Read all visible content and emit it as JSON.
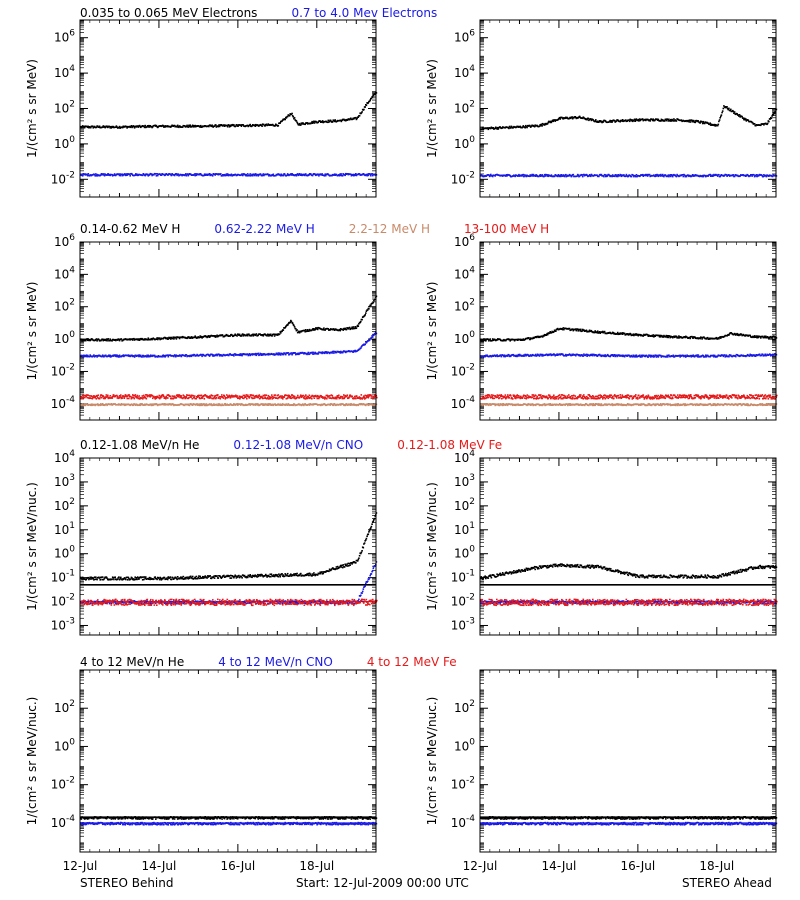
{
  "colors": {
    "black": "#000000",
    "blue": "#1a1ae6",
    "red": "#e61a1a",
    "tan": "#c98a6a"
  },
  "rows": [
    {
      "legend": [
        {
          "text": "0.035 to 0.065 MeV Electrons",
          "color": "black"
        },
        {
          "text": "0.7 to 4.0 Mev Electrons",
          "color": "blue"
        }
      ],
      "ylabel": "1/(cm² s sr MeV)",
      "ytick_labels": [
        {
          "base": "10",
          "exp": "6",
          "v": 6
        },
        {
          "base": "10",
          "exp": "4",
          "v": 4
        },
        {
          "base": "10",
          "exp": "2",
          "v": 2
        },
        {
          "base": "10",
          "exp": "0",
          "v": 0
        },
        {
          "base": "10",
          "exp": "-2",
          "v": -2
        }
      ]
    },
    {
      "legend": [
        {
          "text": "0.14-0.62 MeV H",
          "color": "black"
        },
        {
          "text": "0.62-2.22 MeV H",
          "color": "blue"
        },
        {
          "text": "2.2-12 MeV H",
          "color": "tan"
        },
        {
          "text": "13-100 MeV H",
          "color": "red"
        }
      ],
      "ylabel": "1/(cm² s sr MeV)",
      "ytick_labels": [
        {
          "base": "10",
          "exp": "6",
          "v": 6
        },
        {
          "base": "10",
          "exp": "4",
          "v": 4
        },
        {
          "base": "10",
          "exp": "2",
          "v": 2
        },
        {
          "base": "10",
          "exp": "0",
          "v": 0
        },
        {
          "base": "10",
          "exp": "-2",
          "v": -2
        },
        {
          "base": "10",
          "exp": "-4",
          "v": -4
        }
      ]
    },
    {
      "legend": [
        {
          "text": "0.12-1.08 MeV/n He",
          "color": "black"
        },
        {
          "text": "0.12-1.08 MeV/n CNO",
          "color": "blue"
        },
        {
          "text": "0.12-1.08 MeV Fe",
          "color": "red"
        }
      ],
      "ylabel": "1/(cm² s sr MeV/nuc.)",
      "ytick_labels": [
        {
          "base": "10",
          "exp": "4",
          "v": 4
        },
        {
          "base": "10",
          "exp": "3",
          "v": 3
        },
        {
          "base": "10",
          "exp": "2",
          "v": 2
        },
        {
          "base": "10",
          "exp": "1",
          "v": 1
        },
        {
          "base": "10",
          "exp": "0",
          "v": 0
        },
        {
          "base": "10",
          "exp": "-1",
          "v": -1
        },
        {
          "base": "10",
          "exp": "-2",
          "v": -2
        },
        {
          "base": "10",
          "exp": "-3",
          "v": -3
        }
      ]
    },
    {
      "legend": [
        {
          "text": "4 to 12 MeV/n He",
          "color": "black"
        },
        {
          "text": "4 to 12 MeV/n CNO",
          "color": "blue"
        },
        {
          "text": "4 to 12 MeV Fe",
          "color": "red"
        }
      ],
      "ylabel": "1/(cm² s sr MeV/nuc.)",
      "ytick_labels": [
        {
          "base": "10",
          "exp": "2",
          "v": 2
        },
        {
          "base": "10",
          "exp": "0",
          "v": 0
        },
        {
          "base": "10",
          "exp": "-2",
          "v": -2
        },
        {
          "base": "10",
          "exp": "-4",
          "v": -4
        }
      ]
    }
  ],
  "xtick_labels": [
    "12-Jul",
    "14-Jul",
    "16-Jul",
    "18-Jul"
  ],
  "footer": {
    "left": "STEREO Behind",
    "center": "Start: 12-Jul-2009 00:00 UTC",
    "right": "STEREO Ahead"
  },
  "chart_data": [
    {
      "type": "scatter",
      "panel": "STEREO Behind - electrons",
      "ylog": true,
      "ylim": [
        0.001,
        10000000.0
      ],
      "xlim": [
        "2009-07-12",
        "2009-07-19T12:00"
      ],
      "series": [
        {
          "name": "0.035 to 0.065 MeV Electrons",
          "color": "black",
          "x": [
            "2009-07-12",
            "2009-07-13",
            "2009-07-14",
            "2009-07-15",
            "2009-07-16",
            "2009-07-17",
            "2009-07-17T08:00",
            "2009-07-17T12:00",
            "2009-07-18",
            "2009-07-18T12:00",
            "2009-07-19",
            "2009-07-19T06:00",
            "2009-07-19T12:00"
          ],
          "y": [
            10,
            10,
            11,
            11,
            12,
            13,
            60,
            14,
            20,
            22,
            30,
            200,
            1000
          ]
        },
        {
          "name": "0.7 to 4.0 Mev Electrons",
          "color": "blue",
          "x": [
            "2009-07-12",
            "2009-07-14",
            "2009-07-16",
            "2009-07-18",
            "2009-07-19T12:00"
          ],
          "y": [
            0.02,
            0.02,
            0.02,
            0.02,
            0.02
          ]
        }
      ]
    },
    {
      "type": "scatter",
      "panel": "STEREO Ahead - electrons",
      "ylog": true,
      "ylim": [
        0.001,
        10000000.0
      ],
      "xlim": [
        "2009-07-12",
        "2009-07-19T12:00"
      ],
      "series": [
        {
          "name": "0.035 to 0.065 MeV Electrons",
          "color": "black",
          "x": [
            "2009-07-12",
            "2009-07-12T12:00",
            "2009-07-13",
            "2009-07-13T12:00",
            "2009-07-14",
            "2009-07-14T12:00",
            "2009-07-15",
            "2009-07-16",
            "2009-07-17",
            "2009-07-17T12:00",
            "2009-07-18",
            "2009-07-18T04:00",
            "2009-07-18T16:00",
            "2009-07-19",
            "2009-07-19T06:00",
            "2009-07-19T12:00"
          ],
          "y": [
            8,
            9,
            10,
            12,
            30,
            35,
            20,
            25,
            25,
            20,
            12,
            150,
            30,
            12,
            15,
            100
          ]
        },
        {
          "name": "0.7 to 4.0 Mev Electrons",
          "color": "blue",
          "x": [
            "2009-07-12",
            "2009-07-14",
            "2009-07-16",
            "2009-07-18",
            "2009-07-19T12:00"
          ],
          "y": [
            0.018,
            0.018,
            0.018,
            0.018,
            0.018
          ]
        }
      ]
    },
    {
      "type": "scatter",
      "panel": "STEREO Behind - protons",
      "ylog": true,
      "ylim": [
        1e-05,
        1000000.0
      ],
      "xlim": [
        "2009-07-12",
        "2009-07-19T12:00"
      ],
      "series": [
        {
          "name": "0.14-0.62 MeV H",
          "color": "black",
          "x": [
            "2009-07-12",
            "2009-07-13",
            "2009-07-14",
            "2009-07-15",
            "2009-07-16",
            "2009-07-17",
            "2009-07-17T08:00",
            "2009-07-17T12:00",
            "2009-07-18",
            "2009-07-18T12:00",
            "2009-07-19",
            "2009-07-19T06:00",
            "2009-07-19T12:00"
          ],
          "y": [
            1,
            1,
            1.2,
            1.5,
            2,
            2,
            15,
            3,
            5,
            4,
            6,
            60,
            500
          ]
        },
        {
          "name": "0.62-2.22 MeV H",
          "color": "blue",
          "x": [
            "2009-07-12",
            "2009-07-14",
            "2009-07-16",
            "2009-07-18",
            "2009-07-19",
            "2009-07-19T12:00"
          ],
          "y": [
            0.1,
            0.1,
            0.12,
            0.15,
            0.2,
            3
          ]
        },
        {
          "name": "2.2-12 MeV H",
          "color": "tan",
          "x": [
            "2009-07-12",
            "2009-07-19T12:00"
          ],
          "y": [
            0.0001,
            0.0001
          ]
        },
        {
          "name": "13-100 MeV H",
          "color": "red",
          "x": [
            "2009-07-12",
            "2009-07-19T12:00"
          ],
          "y": [
            0.0003,
            0.0003
          ]
        }
      ]
    },
    {
      "type": "scatter",
      "panel": "STEREO Ahead - protons",
      "ylog": true,
      "ylim": [
        1e-05,
        1000000.0
      ],
      "xlim": [
        "2009-07-12",
        "2009-07-19T12:00"
      ],
      "series": [
        {
          "name": "0.14-0.62 MeV H",
          "color": "black",
          "x": [
            "2009-07-12",
            "2009-07-13",
            "2009-07-13T12:00",
            "2009-07-14",
            "2009-07-14T12:00",
            "2009-07-15",
            "2009-07-16",
            "2009-07-17",
            "2009-07-18",
            "2009-07-18T08:00",
            "2009-07-19",
            "2009-07-19T12:00"
          ],
          "y": [
            1,
            1,
            1.5,
            5,
            4,
            3,
            2,
            1.5,
            1.2,
            2.5,
            1.5,
            1.5
          ]
        },
        {
          "name": "0.62-2.22 MeV H",
          "color": "blue",
          "x": [
            "2009-07-12",
            "2009-07-14",
            "2009-07-16",
            "2009-07-18",
            "2009-07-19T12:00"
          ],
          "y": [
            0.1,
            0.12,
            0.1,
            0.1,
            0.12
          ]
        },
        {
          "name": "2.2-12 MeV H",
          "color": "tan",
          "x": [
            "2009-07-12",
            "2009-07-19T12:00"
          ],
          "y": [
            0.0001,
            0.0001
          ]
        },
        {
          "name": "13-100 MeV H",
          "color": "red",
          "x": [
            "2009-07-12",
            "2009-07-19T12:00"
          ],
          "y": [
            0.0003,
            0.0003
          ]
        }
      ]
    },
    {
      "type": "scatter",
      "panel": "STEREO Behind - suprathermal ions",
      "ylog": true,
      "ylim": [
        0.0004,
        10000.0
      ],
      "xlim": [
        "2009-07-12",
        "2009-07-19T12:00"
      ],
      "series": [
        {
          "name": "0.12-1.08 MeV/n He",
          "color": "black",
          "x": [
            "2009-07-12",
            "2009-07-14",
            "2009-07-16",
            "2009-07-18",
            "2009-07-19",
            "2009-07-19T06:00",
            "2009-07-19T12:00"
          ],
          "y": [
            0.1,
            0.1,
            0.12,
            0.15,
            0.5,
            5,
            60
          ]
        },
        {
          "name": "0.12-1.08 MeV/n CNO",
          "color": "blue",
          "x": [
            "2009-07-12",
            "2009-07-16",
            "2009-07-19",
            "2009-07-19T12:00"
          ],
          "y": [
            0.01,
            0.01,
            0.01,
            0.5
          ]
        },
        {
          "name": "0.12-1.08 MeV Fe",
          "color": "red",
          "x": [
            "2009-07-12",
            "2009-07-19T12:00"
          ],
          "y": [
            0.01,
            0.01
          ]
        }
      ]
    },
    {
      "type": "scatter",
      "panel": "STEREO Ahead - suprathermal ions",
      "ylog": true,
      "ylim": [
        0.0004,
        10000.0
      ],
      "xlim": [
        "2009-07-12",
        "2009-07-19T12:00"
      ],
      "series": [
        {
          "name": "0.12-1.08 MeV/n He",
          "color": "black",
          "x": [
            "2009-07-12",
            "2009-07-13T12:00",
            "2009-07-14",
            "2009-07-15",
            "2009-07-16",
            "2009-07-18",
            "2009-07-19",
            "2009-07-19T12:00"
          ],
          "y": [
            0.1,
            0.3,
            0.35,
            0.3,
            0.12,
            0.12,
            0.3,
            0.3
          ]
        },
        {
          "name": "0.12-1.08 MeV/n CNO",
          "color": "blue",
          "x": [
            "2009-07-12",
            "2009-07-19T12:00"
          ],
          "y": [
            0.01,
            0.01
          ]
        },
        {
          "name": "0.12-1.08 MeV Fe",
          "color": "red",
          "x": [
            "2009-07-12",
            "2009-07-19T12:00"
          ],
          "y": [
            0.01,
            0.01
          ]
        }
      ]
    },
    {
      "type": "scatter",
      "panel": "STEREO Behind - energetic ions",
      "ylog": true,
      "ylim": [
        3e-06,
        10000.0
      ],
      "xlim": [
        "2009-07-12",
        "2009-07-19T12:00"
      ],
      "series": [
        {
          "name": "4 to 12 MeV/n He",
          "color": "black",
          "x": [
            "2009-07-12",
            "2009-07-19T12:00"
          ],
          "y": [
            0.0002,
            0.0002
          ]
        },
        {
          "name": "4 to 12 MeV/n CNO",
          "color": "blue",
          "x": [
            "2009-07-12",
            "2009-07-19T12:00"
          ],
          "y": [
            0.0001,
            0.0001
          ]
        }
      ]
    },
    {
      "type": "scatter",
      "panel": "STEREO Ahead - energetic ions",
      "ylog": true,
      "ylim": [
        3e-06,
        10000.0
      ],
      "xlim": [
        "2009-07-12",
        "2009-07-19T12:00"
      ],
      "series": [
        {
          "name": "4 to 12 MeV/n He",
          "color": "black",
          "x": [
            "2009-07-12",
            "2009-07-19T12:00"
          ],
          "y": [
            0.0002,
            0.0002
          ]
        },
        {
          "name": "4 to 12 MeV/n CNO",
          "color": "blue",
          "x": [
            "2009-07-12",
            "2009-07-19T12:00"
          ],
          "y": [
            0.0001,
            0.0001
          ]
        }
      ]
    }
  ]
}
